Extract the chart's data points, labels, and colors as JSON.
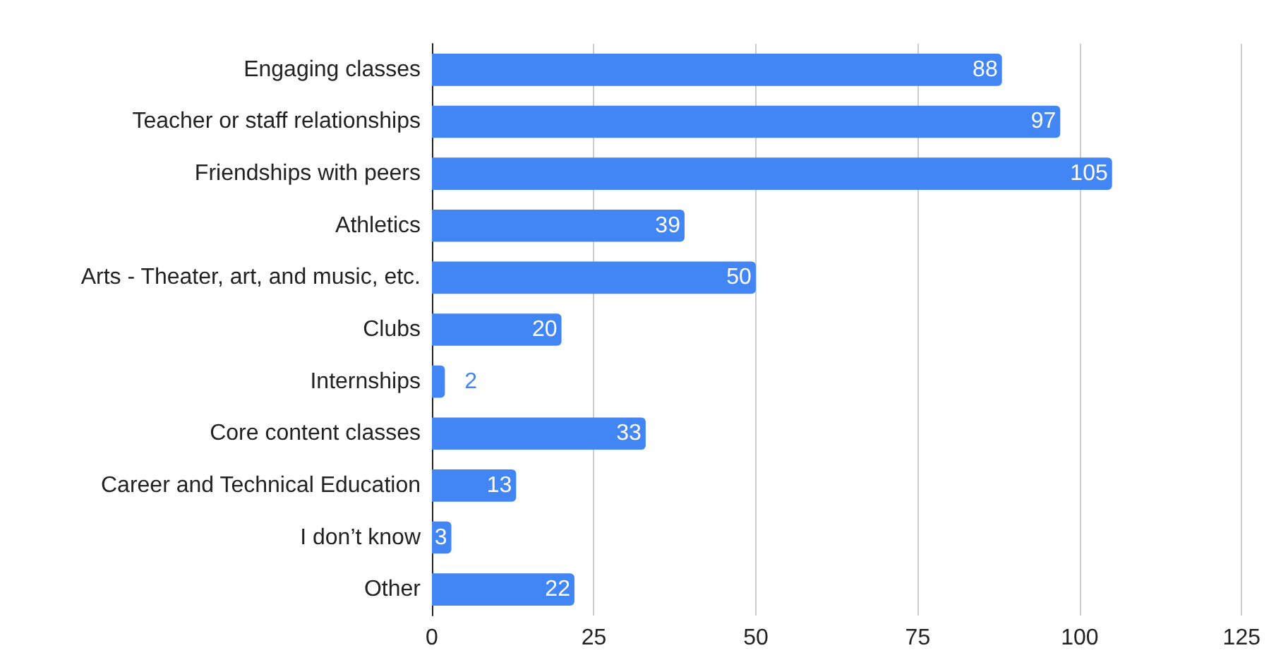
{
  "chart_data": {
    "type": "bar",
    "orientation": "horizontal",
    "categories": [
      "Engaging classes",
      "Teacher or staff relationships",
      "Friendships with peers",
      "Athletics",
      "Arts - Theater, art, and music, etc.",
      "Clubs",
      "Internships",
      "Core content classes",
      "Career and Technical Education",
      "I don’t know",
      "Other"
    ],
    "values": [
      88,
      97,
      105,
      39,
      50,
      20,
      2,
      33,
      13,
      3,
      22
    ],
    "color": "#4285f4",
    "xlim": [
      0,
      125
    ],
    "xticks": [
      0,
      25,
      50,
      75,
      100,
      125
    ],
    "grid": "x",
    "data_labels": true
  }
}
